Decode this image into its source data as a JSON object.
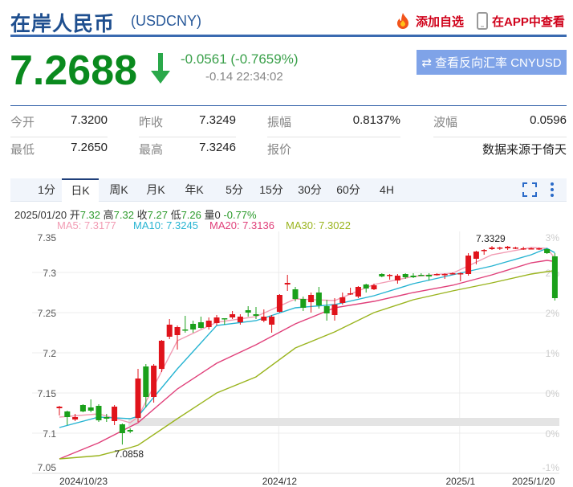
{
  "header": {
    "title": "在岸人民币",
    "code": "(USDCNY)",
    "add_watch": "添加自选",
    "view_app": "在APP中查看",
    "fire_icon": "fire-icon",
    "phone_icon": "phone-icon"
  },
  "quote": {
    "price": "7.2688",
    "direction": "down",
    "change": "-0.0561 (-0.7659%)",
    "sub": "-0.14 22:34:02",
    "reverse_button": "查看反向汇率 CNYUSD",
    "colors": {
      "down": "#0a8a1e",
      "up": "#e0131b",
      "accent": "#1f4f8f"
    }
  },
  "stats": [
    {
      "label": "今开",
      "value": "7.3200"
    },
    {
      "label": "昨收",
      "value": "7.3249"
    },
    {
      "label": "振幅",
      "value": "0.8137%"
    },
    {
      "label": "波幅",
      "value": "0.0596"
    },
    {
      "label": "最低",
      "value": "7.2650"
    },
    {
      "label": "最高",
      "value": "7.3246"
    },
    {
      "label": "报价",
      "value": ""
    },
    {
      "label": "",
      "value": "数据来源于倚天"
    }
  ],
  "tabs": [
    {
      "label": "1分"
    },
    {
      "label": "日K",
      "active": true
    },
    {
      "label": "周K"
    },
    {
      "label": "月K"
    },
    {
      "label": "年K"
    },
    {
      "label": "5分"
    },
    {
      "label": "15分"
    },
    {
      "label": "30分"
    },
    {
      "label": "60分"
    },
    {
      "label": "4H"
    }
  ],
  "toolbar": {
    "fullscreen_icon": "fullscreen-icon",
    "more_icon": "more-vertical-icon"
  },
  "info": {
    "date": "2025/01/20",
    "open_label": "开",
    "open": "7.32",
    "high_label": "高",
    "high": "7.32",
    "close_label": "收",
    "close": "7.27",
    "low_label": "低",
    "low": "7.26",
    "vol_label": "量",
    "vol": "0",
    "pct": "-0.77%"
  },
  "ma_legend": [
    {
      "text": "MA5: 7.3177",
      "color": "#f29cb4"
    },
    {
      "text": "MA10: 7.3245",
      "color": "#27b4d2"
    },
    {
      "text": "MA20: 7.3136",
      "color": "#e0407a"
    },
    {
      "text": "MA30: 7.3022",
      "color": "#9ab41e"
    }
  ],
  "chart_data": {
    "type": "candlestick",
    "ylim": [
      7.05,
      7.35
    ],
    "yticks": [
      "7.35",
      "7.3",
      "7.25",
      "7.2",
      "7.15",
      "7.1",
      "7.05"
    ],
    "right_ticks": [
      "3%",
      "2%",
      "2%",
      "1%",
      "0%",
      "0%",
      "-1%"
    ],
    "xticks": [
      {
        "label": "2024/10/23",
        "index": 0
      },
      {
        "label": "2024/12",
        "index": 28
      },
      {
        "label": "2025/1",
        "index": 51
      },
      {
        "label": "2025/1/20",
        "index": 63
      }
    ],
    "max_label": {
      "text": "7.3329",
      "index": 55,
      "value": 7.3329
    },
    "min_label": {
      "text": "7.0858",
      "index": 8,
      "value": 7.0858
    },
    "ohlc": [
      [
        7.131,
        7.134,
        7.122,
        7.133
      ],
      [
        7.127,
        7.128,
        7.11,
        7.12
      ],
      [
        7.117,
        7.124,
        7.115,
        7.12
      ],
      [
        7.135,
        7.136,
        7.126,
        7.127
      ],
      [
        7.132,
        7.142,
        7.126,
        7.128
      ],
      [
        7.134,
        7.136,
        7.114,
        7.116
      ],
      [
        7.12,
        7.124,
        7.114,
        7.118
      ],
      [
        7.115,
        7.135,
        7.11,
        7.133
      ],
      [
        7.111,
        7.112,
        7.0858,
        7.1
      ],
      [
        7.104,
        7.106,
        7.1,
        7.102
      ],
      [
        7.119,
        7.18,
        7.114,
        7.168
      ],
      [
        7.183,
        7.186,
        7.132,
        7.145
      ],
      [
        7.145,
        7.186,
        7.138,
        7.184
      ],
      [
        7.18,
        7.216,
        7.176,
        7.215
      ],
      [
        7.22,
        7.242,
        7.217,
        7.235
      ],
      [
        7.222,
        7.234,
        7.204,
        7.232
      ],
      [
        7.229,
        7.246,
        7.225,
        7.228
      ],
      [
        7.236,
        7.24,
        7.225,
        7.229
      ],
      [
        7.238,
        7.245,
        7.23,
        7.231
      ],
      [
        7.232,
        7.244,
        7.229,
        7.24
      ],
      [
        7.237,
        7.247,
        7.234,
        7.244
      ],
      [
        7.243,
        7.243,
        7.235,
        7.242
      ],
      [
        7.244,
        7.252,
        7.242,
        7.248
      ],
      [
        7.238,
        7.248,
        7.235,
        7.245
      ],
      [
        7.253,
        7.258,
        7.245,
        7.25
      ],
      [
        7.248,
        7.257,
        7.242,
        7.246
      ],
      [
        7.24,
        7.254,
        7.238,
        7.245
      ],
      [
        7.235,
        7.247,
        7.225,
        7.245
      ],
      [
        7.251,
        7.273,
        7.25,
        7.272
      ],
      [
        7.285,
        7.297,
        7.277,
        7.287
      ],
      [
        7.279,
        7.282,
        7.264,
        7.267
      ],
      [
        7.267,
        7.27,
        7.252,
        7.256
      ],
      [
        7.263,
        7.275,
        7.25,
        7.272
      ],
      [
        7.275,
        7.282,
        7.255,
        7.259
      ],
      [
        7.258,
        7.266,
        7.24,
        7.249
      ],
      [
        7.247,
        7.268,
        7.24,
        7.26
      ],
      [
        7.262,
        7.275,
        7.26,
        7.269
      ],
      [
        7.273,
        7.281,
        7.272,
        7.274
      ],
      [
        7.27,
        7.283,
        7.268,
        7.282
      ],
      [
        7.285,
        7.286,
        7.275,
        7.28
      ],
      [
        7.279,
        7.286,
        7.278,
        7.284
      ],
      [
        7.298,
        7.299,
        7.294,
        7.295
      ],
      [
        7.296,
        7.298,
        7.291,
        7.297
      ],
      [
        7.29,
        7.298,
        7.286,
        7.296
      ],
      [
        7.298,
        7.299,
        7.292,
        7.294
      ],
      [
        7.296,
        7.299,
        7.293,
        7.294
      ],
      [
        7.297,
        7.299,
        7.296,
        7.296
      ],
      [
        7.297,
        7.299,
        7.29,
        7.295
      ],
      [
        7.297,
        7.299,
        7.296,
        7.298
      ],
      [
        7.297,
        7.299,
        7.292,
        7.298
      ],
      [
        7.299,
        7.3,
        7.298,
        7.299
      ],
      [
        7.298,
        7.3,
        7.289,
        7.299
      ],
      [
        7.298,
        7.324,
        7.296,
        7.321
      ],
      [
        7.317,
        7.327,
        7.31,
        7.326
      ],
      [
        7.327,
        7.329,
        7.322,
        7.328
      ],
      [
        7.329,
        7.3329,
        7.328,
        7.331
      ],
      [
        7.33,
        7.332,
        7.328,
        7.331
      ],
      [
        7.33,
        7.333,
        7.328,
        7.332
      ],
      [
        7.331,
        7.332,
        7.329,
        7.331
      ],
      [
        7.33,
        7.332,
        7.328,
        7.33
      ],
      [
        7.33,
        7.331,
        7.329,
        7.33
      ],
      [
        7.33,
        7.331,
        7.328,
        7.33
      ],
      [
        7.329,
        7.33,
        7.323,
        7.324
      ],
      [
        7.32,
        7.324,
        7.265,
        7.268
      ]
    ],
    "ma_index": [
      0,
      5,
      9,
      10,
      15,
      20,
      25,
      30,
      35,
      40,
      45,
      50,
      55,
      60,
      62,
      63
    ],
    "ma": {
      "MA5": [
        7.12,
        7.124,
        7.113,
        7.12,
        7.215,
        7.238,
        7.245,
        7.267,
        7.265,
        7.285,
        7.295,
        7.299,
        7.322,
        7.331,
        7.33,
        7.3177
      ],
      "MA10": [
        7.107,
        7.12,
        7.118,
        7.121,
        7.18,
        7.234,
        7.24,
        7.256,
        7.26,
        7.271,
        7.286,
        7.297,
        7.308,
        7.322,
        7.33,
        7.3245
      ],
      "MA20": [
        7.068,
        7.088,
        7.108,
        7.113,
        7.155,
        7.187,
        7.21,
        7.236,
        7.256,
        7.264,
        7.275,
        7.284,
        7.297,
        7.312,
        7.315,
        7.3136
      ],
      "MA30": [
        7.068,
        7.072,
        7.082,
        7.085,
        7.118,
        7.15,
        7.17,
        7.206,
        7.226,
        7.25,
        7.266,
        7.277,
        7.287,
        7.298,
        7.301,
        7.3022
      ]
    }
  }
}
